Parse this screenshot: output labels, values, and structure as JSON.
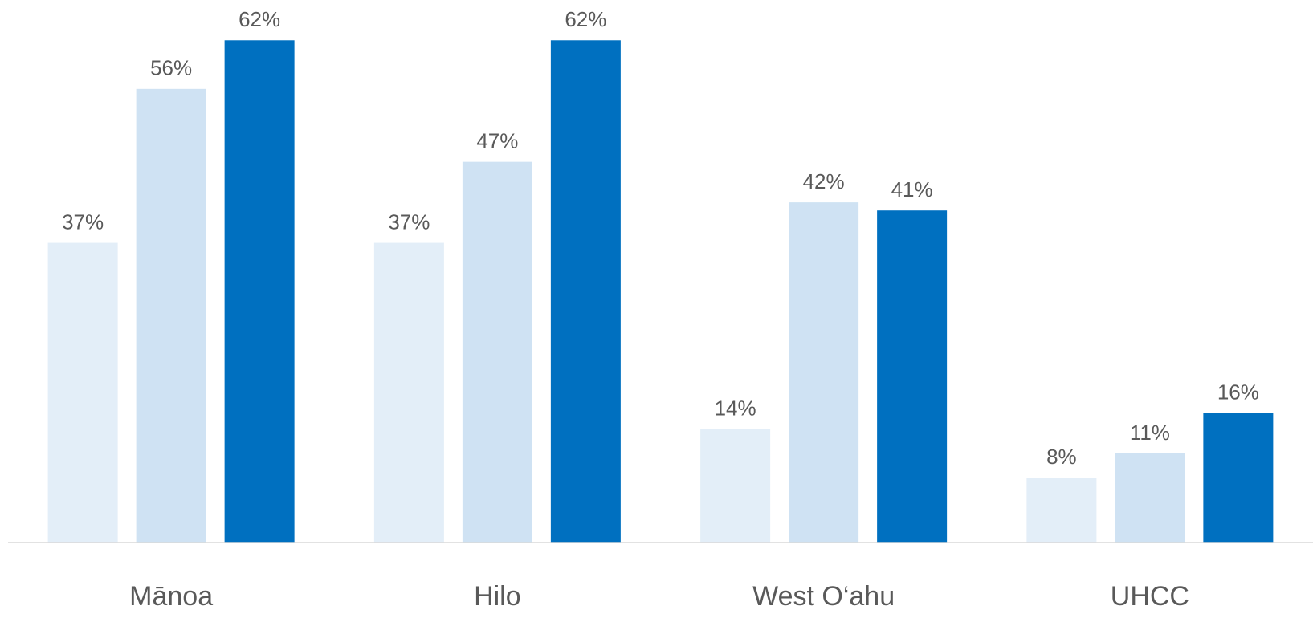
{
  "chart_data": {
    "type": "bar",
    "categories": [
      "Mānoa",
      "Hilo",
      "West O‘ahu",
      "UHCC"
    ],
    "series": [
      {
        "color": "#e3eef8",
        "values": [
          37,
          37,
          14,
          8
        ],
        "value_labels": [
          "37%",
          "37%",
          "14%",
          "8%"
        ]
      },
      {
        "color": "#cfe2f3",
        "values": [
          56,
          47,
          42,
          11
        ],
        "value_labels": [
          "56%",
          "47%",
          "42%",
          "11%"
        ]
      },
      {
        "color": "#0070c0",
        "values": [
          62,
          62,
          41,
          16
        ],
        "value_labels": [
          "62%",
          "62%",
          "41%",
          "16%"
        ]
      }
    ],
    "ylim": [
      0,
      65
    ],
    "grid": false
  }
}
